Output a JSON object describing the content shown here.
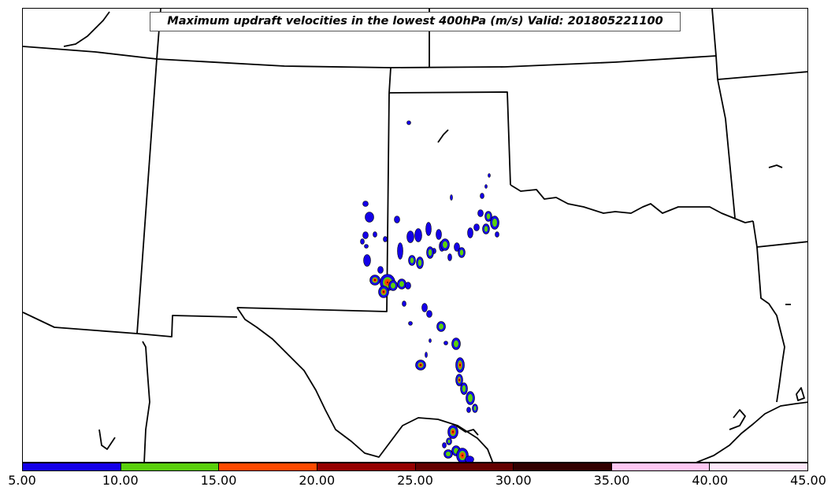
{
  "map": {
    "title": "Maximum updraft velocities in the lowest 400hPa (m/s) Valid: 201805221100",
    "variable_units": "m/s"
  },
  "colorbar": {
    "ticks": [
      "5.00",
      "10.00",
      "15.00",
      "20.00",
      "25.00",
      "30.00",
      "35.00",
      "40.00",
      "45.00"
    ],
    "range": [
      5,
      45
    ],
    "bins": [
      {
        "range": [
          5,
          10
        ],
        "color": "#1400e8"
      },
      {
        "range": [
          10,
          15
        ],
        "color": "#5ad00c"
      },
      {
        "range": [
          15,
          20
        ],
        "color": "#ff4a00"
      },
      {
        "range": [
          20,
          25
        ],
        "color": "#960000"
      },
      {
        "range": [
          25,
          30
        ],
        "color": "#640000"
      },
      {
        "range": [
          30,
          35
        ],
        "color": "#320000"
      },
      {
        "range": [
          35,
          40
        ],
        "color": "#ffc8f4"
      },
      {
        "range": [
          40,
          45
        ],
        "color": "#ffe8fc"
      }
    ]
  }
}
